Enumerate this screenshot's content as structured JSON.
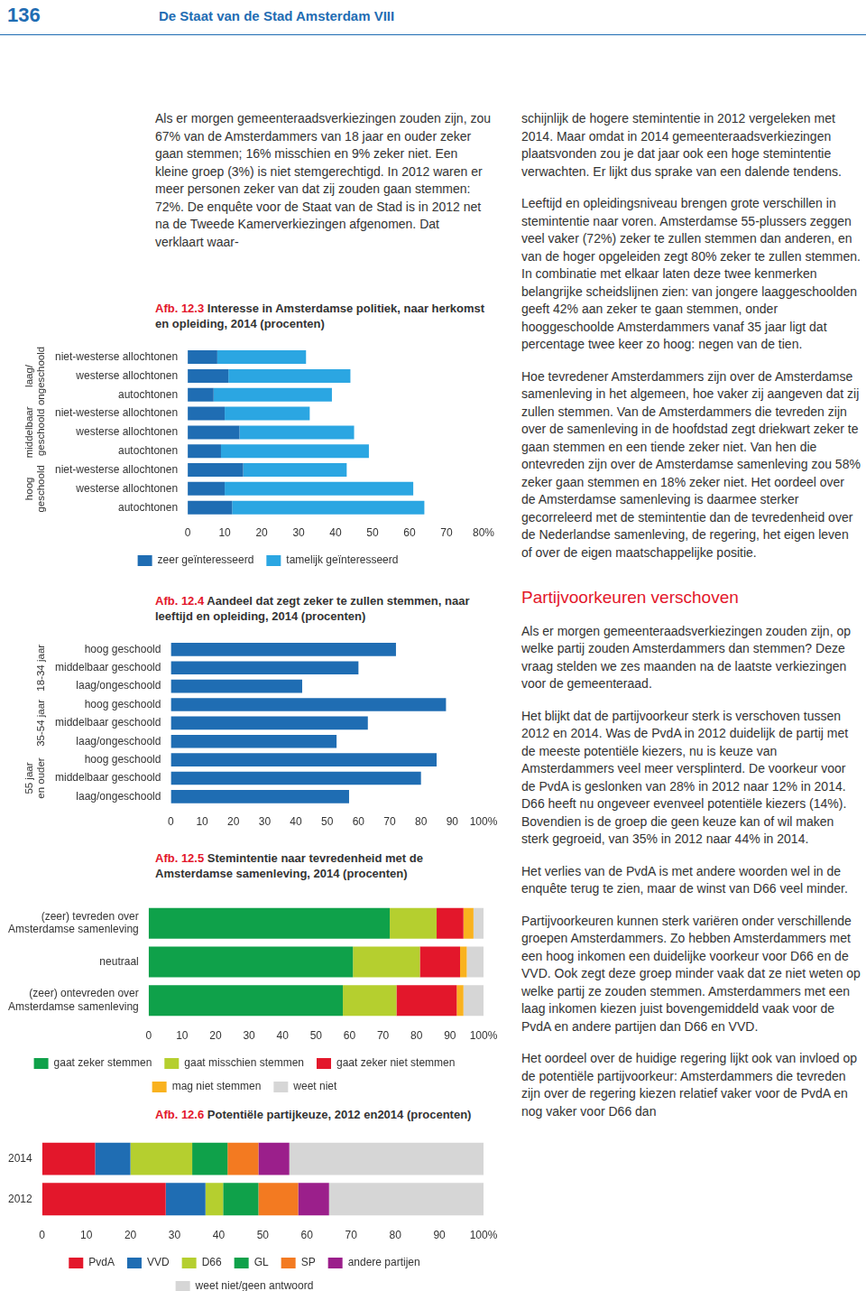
{
  "header": {
    "page_number": "136",
    "running_title": "De Staat van de Stad Amsterdam VIII"
  },
  "left_column": [
    "Als er morgen gemeenteraadsverkiezingen zouden zijn, zou 67% van de Amsterdammers van 18 jaar en ouder zeker gaan stemmen; 16% misschien en 9% zeker niet. Een kleine groep (3%) is niet stemgerechtigd. In 2012 waren er meer personen zeker van dat zij zouden gaan stemmen: 72%. De enquête voor de Staat van de Stad is in 2012 net na de Tweede Kamerverkiezingen afgenomen. Dat verklaart waar-"
  ],
  "right_column": [
    {
      "type": "p",
      "text": "schijnlijk de hogere stemintentie in 2012 vergeleken met 2014. Maar omdat in 2014 gemeenteraadsverkiezingen plaatsvonden zou je dat jaar ook een hoge stemintentie verwachten. Er lijkt dus sprake van een dalende tendens."
    },
    {
      "type": "p",
      "text": "Leeftijd en opleidingsniveau brengen grote verschillen in stemintentie naar voren. Amsterdamse 55-plussers zeggen veel vaker (72%) zeker te zullen stemmen dan anderen, en van de hoger opgeleiden zegt 80% zeker te zullen stemmen. In combinatie met elkaar laten deze twee kenmerken belangrijke scheidslijnen zien: van jongere laaggeschoolden geeft 42% aan zeker te gaan stemmen, onder hooggeschoolde Amsterdammers vanaf 35 jaar ligt dat percentage twee keer zo hoog: negen van de tien."
    },
    {
      "type": "p",
      "text": "Hoe tevredener Amsterdammers zijn over de Amsterdamse samenleving in het algemeen, hoe vaker zij aangeven dat zij zullen stemmen. Van de Amsterdammers die tevreden zijn over de samenleving in de hoofdstad zegt driekwart zeker te gaan stemmen en een tiende zeker niet. Van hen die ontevreden zijn over de Amsterdamse samenleving zou 58% zeker gaan stemmen en 18% zeker niet. Het oordeel over de Amsterdamse samenleving is daarmee sterker gecorreleerd met de stemintentie dan de tevredenheid over de Nederlandse samenleving, de regering, het eigen leven of over de eigen maatschappelijke positie."
    },
    {
      "type": "h",
      "text": "Partijvoorkeuren verschoven"
    },
    {
      "type": "p",
      "text": "Als er morgen gemeenteraadsverkiezingen zouden zijn, op welke partij zouden Amsterdammers dan stemmen? Deze vraag stelden we zes maanden na de laatste verkiezingen voor de gemeenteraad."
    },
    {
      "type": "p",
      "text": "Het blijkt dat de partijvoorkeur sterk is verschoven tussen 2012 en 2014. Was de PvdA in 2012 duidelijk de partij met de meeste potentiële kiezers, nu is keuze van Amsterdammers veel meer versplinterd. De voorkeur voor de PvdA is geslonken van 28% in 2012 naar 12% in 2014. D66 heeft nu ongeveer evenveel potentiële kiezers (14%). Bovendien is de groep die geen keuze kan of wil maken sterk gegroeid, van 35% in 2012 naar 44% in 2014."
    },
    {
      "type": "p",
      "text": "Het verlies van de PvdA is met andere woorden wel in de enquête terug te zien, maar de winst van D66 veel minder."
    },
    {
      "type": "p",
      "text": "Partijvoorkeuren kunnen sterk variëren onder verschillende groepen Amsterdammers. Zo hebben Amsterdammers met een hoog inkomen een duidelijke voorkeur voor D66 en de VVD. Ook zegt deze groep minder vaak dat ze niet weten op welke partij ze zouden stemmen. Amsterdammers met een laag inkomen kiezen juist bovengemiddeld vaak voor de PvdA en andere partijen dan D66 en VVD."
    },
    {
      "type": "p",
      "text": "Het oordeel over de huidige regering lijkt ook van invloed op de potentiële partijvoorkeur: Amsterdammers die tevreden zijn over de regering kiezen relatief vaker voor de PvdA en nog vaker voor D66 dan"
    }
  ],
  "chart_data": [
    {
      "figure": "Afb. 12.3",
      "type": "bar",
      "title": "Interesse in Amsterdamse politiek, naar herkomst en opleiding, 2014 (procenten)",
      "orientation": "horizontal",
      "stacked": true,
      "grid": false,
      "legend": "bottom",
      "groups": [
        [
          "laag/",
          "ongeschoold"
        ],
        [
          "middelbaar",
          "geschoold"
        ],
        [
          "hoog",
          "geschoold"
        ]
      ],
      "categories": [
        "niet-westerse allochtonen",
        "westerse allochtonen",
        "autochtonen",
        "niet-westerse allochtonen",
        "westerse allochtonen",
        "autochtonen",
        "niet-westerse allochtonen",
        "westerse allochtonen",
        "autochtonen"
      ],
      "series": [
        {
          "name": "zeer geïnteresseerd",
          "color": "#1f6db3",
          "values": [
            8,
            11,
            7,
            10,
            14,
            9,
            15,
            10,
            12
          ]
        },
        {
          "name": "tamelijk geïnteresseerd",
          "color": "#2ba6e2",
          "values": [
            24,
            33,
            32,
            23,
            31,
            40,
            28,
            51,
            52
          ]
        }
      ],
      "xlim": [
        0,
        80
      ],
      "xticks": [
        0,
        10,
        20,
        30,
        40,
        50,
        60,
        70,
        {
          "value": 80,
          "label": "80%"
        }
      ]
    },
    {
      "figure": "Afb. 12.4",
      "type": "bar",
      "title": "Aandeel dat zegt zeker te zullen stemmen, naar leeftijd en opleiding, 2014 (procenten)",
      "orientation": "horizontal",
      "grid": false,
      "groups": [
        [
          "18-34 jaar"
        ],
        [
          "35-54 jaar"
        ],
        [
          "55 jaar",
          "en ouder"
        ]
      ],
      "categories": [
        "hoog geschoold",
        "middelbaar geschoold",
        "laag/ongeschoold",
        "hoog geschoold",
        "middelbaar geschoold",
        "laag/ongeschoold",
        "hoog geschoold",
        "middelbaar geschoold",
        "laag/ongeschoold"
      ],
      "values": [
        72,
        60,
        42,
        88,
        63,
        53,
        85,
        80,
        57
      ],
      "color": "#1f6db3",
      "xlim": [
        0,
        100
      ],
      "xticks": [
        0,
        10,
        20,
        30,
        40,
        50,
        60,
        70,
        80,
        90,
        {
          "value": 100,
          "label": "100%"
        }
      ]
    },
    {
      "figure": "Afb. 12.5",
      "type": "bar",
      "title": "Stemintentie naar tevredenheid met de Amsterdamse samenleving, 2014 (procenten)",
      "orientation": "horizontal",
      "stacked": true,
      "grid": false,
      "legend": "bottom",
      "categories": [
        [
          "(zeer) tevreden over",
          "Amsterdamse samenleving"
        ],
        [
          "neutraal"
        ],
        [
          "(zeer) ontevreden over",
          "Amsterdamse samenleving"
        ]
      ],
      "series": [
        {
          "name": "gaat zeker stemmen",
          "color": "#0fa14a",
          "values": [
            72,
            61,
            58
          ]
        },
        {
          "name": "gaat misschien stemmen",
          "color": "#b5cf2f",
          "values": [
            14,
            20,
            16
          ]
        },
        {
          "name": "gaat zeker niet stemmen",
          "color": "#e3172b",
          "values": [
            8,
            12,
            18
          ]
        },
        {
          "name": "mag niet stemmen",
          "color": "#f9b21f",
          "values": [
            3,
            2,
            2
          ]
        },
        {
          "name": "weet niet",
          "color": "#d6d6d6",
          "values": [
            3,
            5,
            6
          ]
        }
      ],
      "xlim": [
        0,
        100
      ],
      "xticks": [
        0,
        10,
        20,
        30,
        40,
        50,
        60,
        70,
        80,
        90,
        {
          "value": 100,
          "label": "100%"
        }
      ]
    },
    {
      "figure": "Afb. 12.6",
      "type": "bar",
      "title": "Potentiële partijkeuze, 2012 en2014 (procenten)",
      "orientation": "horizontal",
      "stacked": true,
      "grid": false,
      "legend": "bottom",
      "categories": [
        "2014",
        "2012"
      ],
      "series": [
        {
          "name": "PvdA",
          "color": "#e3172b",
          "values": [
            12,
            28
          ]
        },
        {
          "name": "VVD",
          "color": "#1f6db3",
          "values": [
            8,
            9
          ]
        },
        {
          "name": "D66",
          "color": "#b5cf2f",
          "values": [
            14,
            4
          ]
        },
        {
          "name": "GL",
          "color": "#0fa14a",
          "values": [
            8,
            8
          ]
        },
        {
          "name": "SP",
          "color": "#f37a21",
          "values": [
            7,
            9
          ]
        },
        {
          "name": "andere partijen",
          "color": "#9b1f8b",
          "values": [
            7,
            7
          ]
        },
        {
          "name": "weet niet/geen antwoord",
          "color": "#d6d6d6",
          "values": [
            44,
            35
          ]
        }
      ],
      "xlim": [
        0,
        100
      ],
      "xticks": [
        0,
        10,
        20,
        30,
        40,
        50,
        60,
        70,
        80,
        90,
        {
          "value": 100,
          "label": "100%"
        }
      ]
    }
  ]
}
